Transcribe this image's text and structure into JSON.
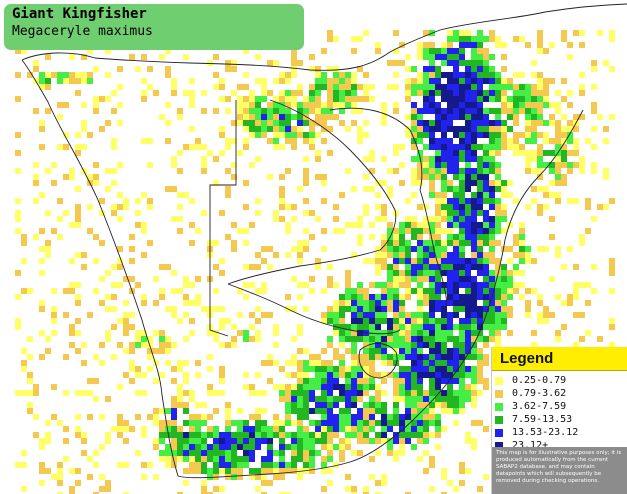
{
  "species": {
    "common_name": "Giant Kingfisher",
    "scientific_name": "Megaceryle maximus"
  },
  "legend": {
    "title": "Legend",
    "classes": [
      {
        "label": "0.25-0.79",
        "color": "#ffff66"
      },
      {
        "label": "0.79-3.62",
        "color": "#f5c850"
      },
      {
        "label": "3.62-7.59",
        "color": "#44ee44"
      },
      {
        "label": "7.59-13.53",
        "color": "#22b722"
      },
      {
        "label": "13.53-23.12",
        "color": "#2222ee"
      },
      {
        "label": "23.12+",
        "color": "#141a8c"
      }
    ],
    "disclaimer": "This map is for illustrative purposes only; it is produced automatically from the current SABAP2 database, and may contain datapoints which will subsequently be removed during checking operations."
  },
  "map_colors": {
    "boundary": "#222222",
    "title_box": "#6fce6f",
    "legend_header": "#ffee00"
  }
}
